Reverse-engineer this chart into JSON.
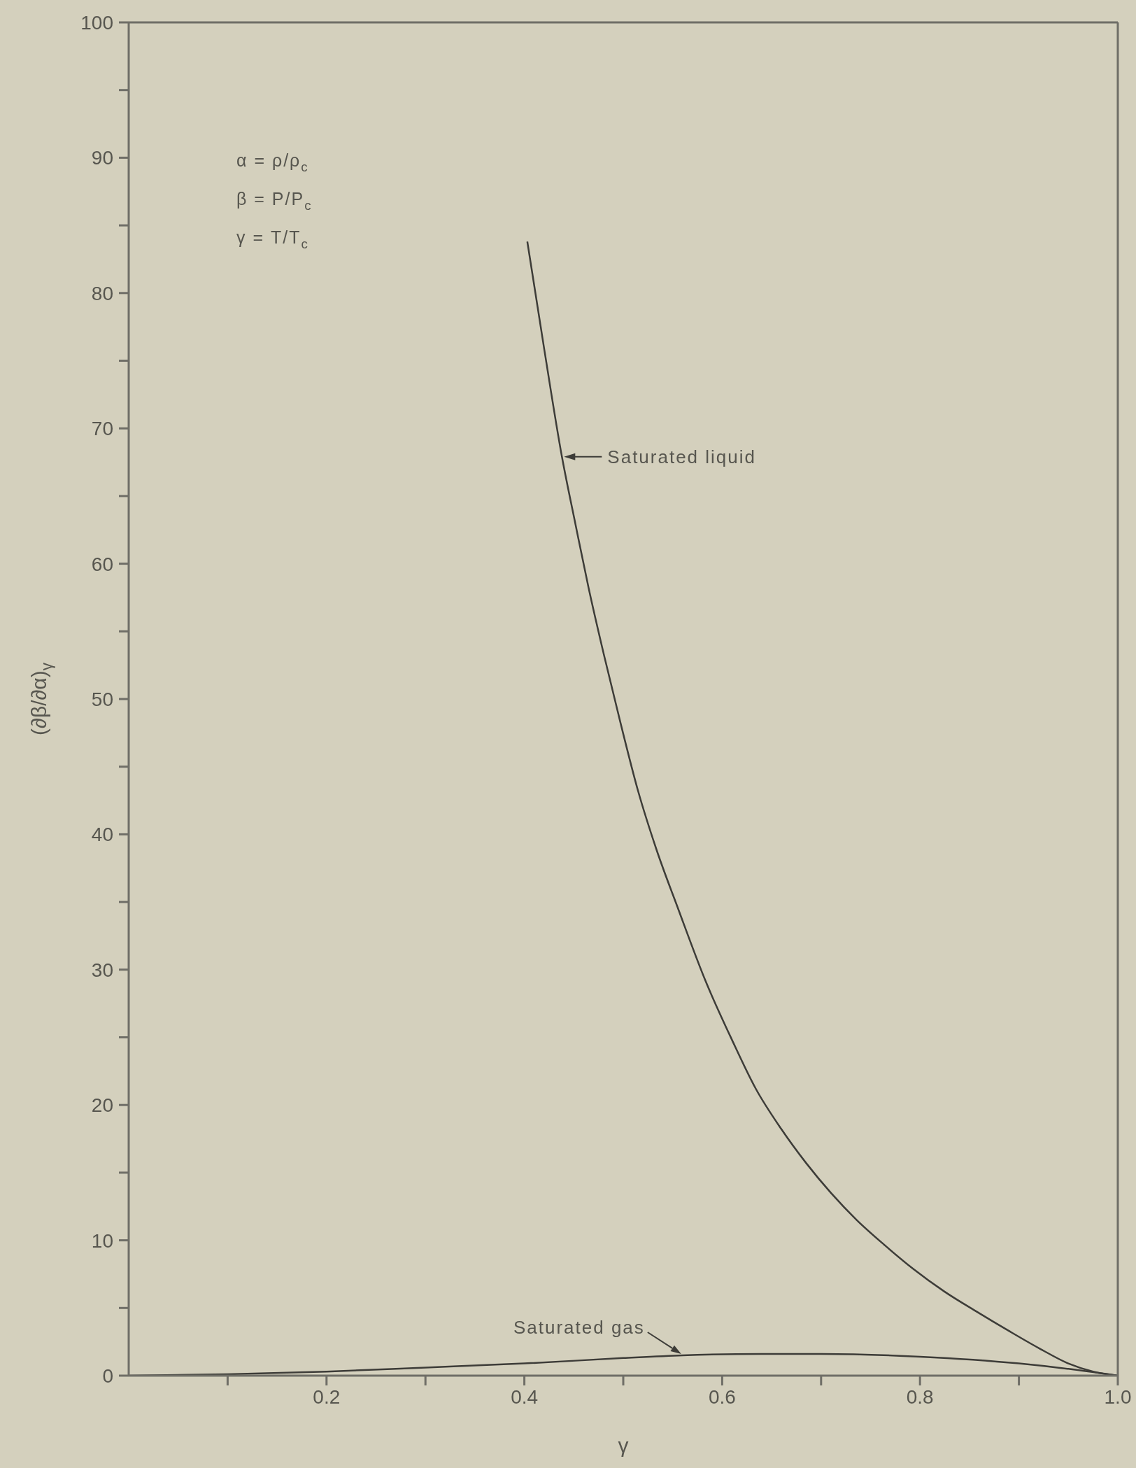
{
  "chart_data": {
    "type": "line",
    "xlabel": "γ",
    "ylabel": "(∂β/∂α)$_{γ}$",
    "annotations": [
      "α = ρ/ρ$_{c}$",
      "β = P/P$_{c}$",
      "γ = T/T$_{c}$"
    ],
    "xlim": [
      0,
      1
    ],
    "xticks": [
      {
        "value": 0.1,
        "label": null
      },
      0.2,
      {
        "value": 0.3,
        "label": null
      },
      0.4,
      {
        "value": 0.5,
        "label": null
      },
      0.6,
      {
        "value": 0.7,
        "label": null
      },
      0.8,
      {
        "value": 0.9,
        "label": null
      },
      {
        "value": 1,
        "label": "1.0"
      }
    ],
    "ylim": [
      0,
      100
    ],
    "yticks": [
      0,
      {
        "value": 5,
        "label": null
      },
      10,
      {
        "value": 15,
        "label": null
      },
      20,
      {
        "value": 25,
        "label": null
      },
      30,
      {
        "value": 35,
        "label": null
      },
      40,
      {
        "value": 45,
        "label": null
      },
      50,
      {
        "value": 55,
        "label": null
      },
      60,
      {
        "value": 65,
        "label": null
      },
      70,
      {
        "value": 75,
        "label": null
      },
      80,
      {
        "value": 85,
        "label": null
      },
      90,
      {
        "value": 95,
        "label": null
      },
      100
    ],
    "series": [
      {
        "name": "Saturated liquid",
        "color": "#3d3c38",
        "x": [
          0.403,
          0.42,
          0.438,
          0.452,
          0.465,
          0.481,
          0.497,
          0.515,
          0.533,
          0.556,
          0.583,
          0.61,
          0.634,
          0.66,
          0.685,
          0.71,
          0.736,
          0.765,
          0.793,
          0.825,
          0.858,
          0.89,
          0.921,
          0.95,
          0.975,
          1.0
        ],
        "values": [
          83.8,
          75.9,
          67.9,
          62.8,
          58.2,
          53.1,
          48.3,
          43.2,
          39.0,
          34.4,
          29.2,
          24.8,
          21.2,
          18.2,
          15.7,
          13.5,
          11.5,
          9.6,
          7.9,
          6.2,
          4.7,
          3.3,
          2.0,
          0.9,
          0.3,
          0
        ]
      },
      {
        "name": "Saturated gas",
        "color": "#3d3c38",
        "x": [
          0,
          0.1,
          0.2,
          0.3,
          0.4,
          0.5,
          0.56,
          0.64,
          0.7,
          0.8,
          0.9,
          0.95,
          1.0
        ],
        "values": [
          0,
          0.1,
          0.3,
          0.6,
          0.9,
          1.3,
          1.5,
          1.6,
          1.6,
          1.4,
          0.9,
          0.5,
          0
        ]
      }
    ]
  }
}
